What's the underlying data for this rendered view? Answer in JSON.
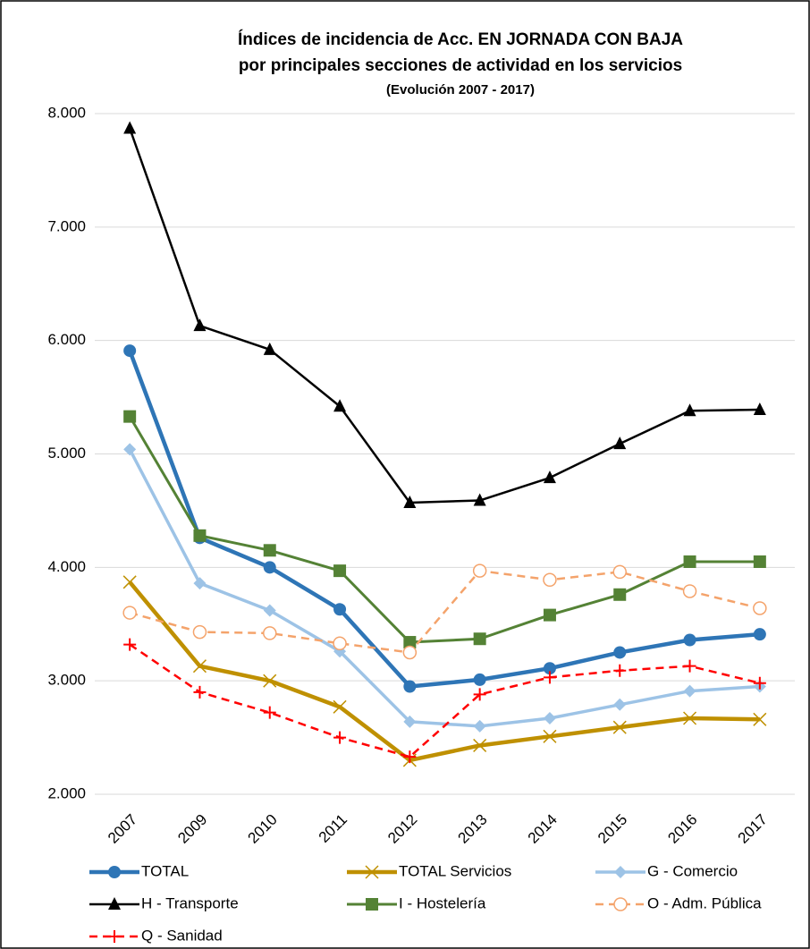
{
  "chart_data": {
    "type": "line",
    "title": "Índices de incidencia de Acc. EN JORNADA CON BAJA",
    "subtitle": "por principales secciones de actividad en los servicios",
    "subtitle2": "(Evolución 2007 - 2017)",
    "categories": [
      "2007",
      "2009",
      "2010",
      "2011",
      "2012",
      "2013",
      "2014",
      "2015",
      "2016",
      "2017"
    ],
    "ylim": [
      2000,
      8000
    ],
    "yticks": [
      {
        "value": 2000,
        "label": "2.000"
      },
      {
        "value": 3000,
        "label": "3.000"
      },
      {
        "value": 4000,
        "label": "4.000"
      },
      {
        "value": 5000,
        "label": "5.000"
      },
      {
        "value": 6000,
        "label": "6.000"
      },
      {
        "value": 7000,
        "label": "7.000"
      },
      {
        "value": 8000,
        "label": "8.000"
      }
    ],
    "grid": true,
    "legend": "bottom",
    "series": [
      {
        "name": "TOTAL",
        "color": "#2e75b6",
        "marker": "circle",
        "line_style": "solid",
        "values": [
          5910,
          4260,
          4000,
          3630,
          2950,
          3010,
          3110,
          3250,
          3360,
          3410
        ]
      },
      {
        "name": "TOTAL Servicios",
        "color": "#bf9000",
        "marker": "x",
        "line_style": "solid",
        "values": [
          3870,
          3130,
          3000,
          2770,
          2300,
          2430,
          2510,
          2590,
          2670,
          2660
        ]
      },
      {
        "name": "G - Comercio",
        "color": "#9dc3e6",
        "marker": "diamond",
        "line_style": "solid",
        "values": [
          5040,
          3860,
          3620,
          3260,
          2640,
          2600,
          2670,
          2790,
          2910,
          2950
        ]
      },
      {
        "name": "H - Transporte",
        "color": "#000000",
        "marker": "triangle",
        "line_style": "solid",
        "values": [
          7870,
          6130,
          5920,
          5420,
          4570,
          4590,
          4790,
          5090,
          5380,
          5390
        ]
      },
      {
        "name": "I - Hostelería",
        "color": "#548235",
        "marker": "square",
        "line_style": "solid",
        "values": [
          5330,
          4280,
          4150,
          3970,
          3340,
          3370,
          3580,
          3760,
          4050,
          4050
        ]
      },
      {
        "name": "O - Adm. Pública",
        "color": "#f4a36b",
        "marker": "open-circle",
        "line_style": "dashed",
        "values": [
          3600,
          3430,
          3420,
          3330,
          3250,
          3970,
          3890,
          3960,
          3790,
          3640
        ]
      },
      {
        "name": "Q - Sanidad",
        "color": "#ff0000",
        "marker": "plus",
        "line_style": "dashed",
        "values": [
          3320,
          2900,
          2720,
          2500,
          2330,
          2880,
          3030,
          3090,
          3130,
          2980
        ]
      }
    ]
  }
}
